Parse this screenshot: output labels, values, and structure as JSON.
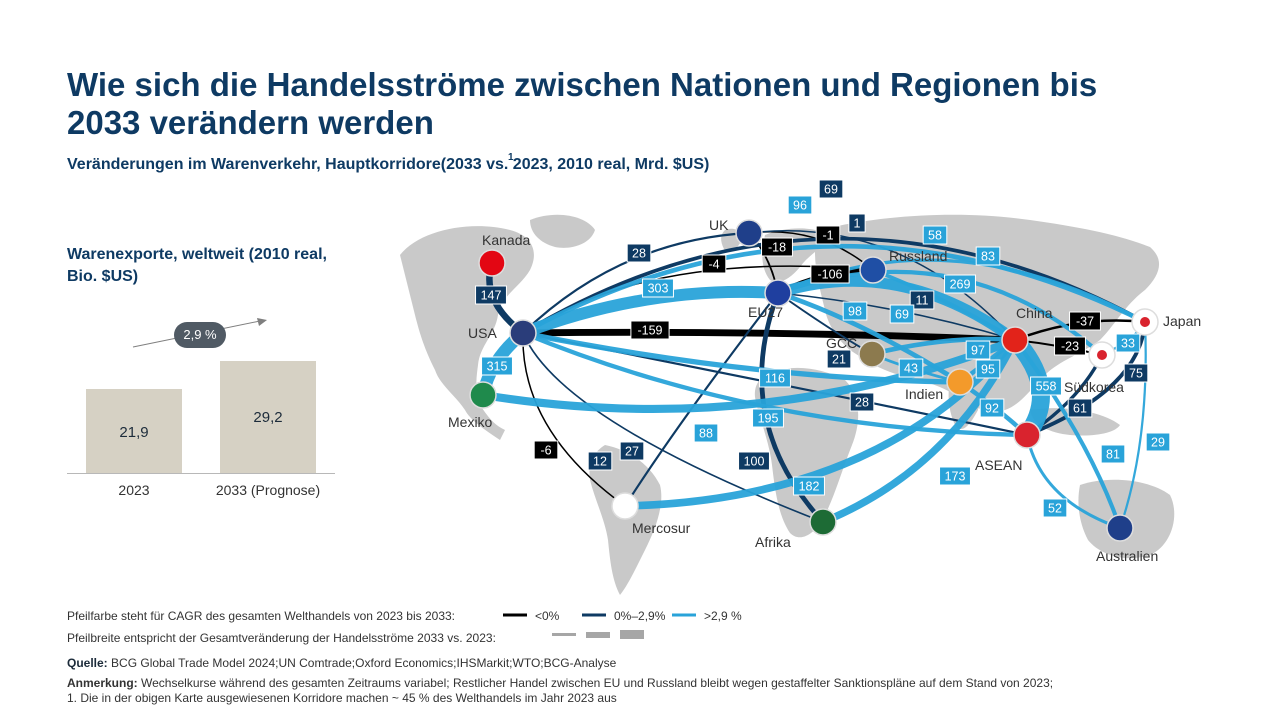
{
  "title": "Wie sich die Handelsströme zwischen Nationen und Regionen bis 2033 verändern werden",
  "subtitle": "Veränderungen im Warenverkehr, Hauptkorridore(2033 vs. 2023, 2010 real, Mrd. $US)",
  "footnote_mark": "1",
  "exports": {
    "title": "Warenexporte, weltweit (2010 real, Bio. $US)",
    "cagr": "2,9 %",
    "bars": [
      {
        "label": "2023",
        "value": "21,9",
        "num": 21.9
      },
      {
        "label": "2033 (Prognose)",
        "value": "29,2",
        "num": 29.2
      }
    ]
  },
  "regions": [
    {
      "name": "Kanada"
    },
    {
      "name": "USA"
    },
    {
      "name": "Mexiko"
    },
    {
      "name": "UK"
    },
    {
      "name": "EU27"
    },
    {
      "name": "Russland"
    },
    {
      "name": "GCC"
    },
    {
      "name": "China"
    },
    {
      "name": "Japan"
    },
    {
      "name": "Südkorea"
    },
    {
      "name": "Indien"
    },
    {
      "name": "ASEAN"
    },
    {
      "name": "Mercosur"
    },
    {
      "name": "Afrika"
    },
    {
      "name": "Australien"
    }
  ],
  "flows": [
    {
      "from": "USA",
      "to": "China",
      "value": "-159",
      "class": "neg"
    },
    {
      "from": "EU27",
      "to": "Russland",
      "value": "-106",
      "class": "neg"
    },
    {
      "from": "UK",
      "to": "EU27",
      "value": "-18",
      "class": "neg"
    },
    {
      "from": "UK",
      "to": "Russland",
      "value": "-1",
      "class": "neg"
    },
    {
      "from": "USA",
      "to": "Russland",
      "value": "-4",
      "class": "neg"
    },
    {
      "from": "China",
      "to": "Japan",
      "value": "-37",
      "class": "neg"
    },
    {
      "from": "China",
      "to": "Südkorea",
      "value": "-23",
      "class": "neg"
    },
    {
      "from": "USA",
      "to": "Mercosur",
      "value": "-6",
      "class": "neg"
    },
    {
      "from": "USA",
      "to": "Japan",
      "value": "69",
      "class": "mid"
    },
    {
      "from": "UK",
      "to": "China",
      "value": "1",
      "class": "mid"
    },
    {
      "from": "USA",
      "to": "UK",
      "value": "28",
      "class": "mid"
    },
    {
      "from": "Kanada",
      "to": "USA",
      "value": "147",
      "class": "mid"
    },
    {
      "from": "EU27",
      "to": "China",
      "value": "11",
      "class": "mid"
    },
    {
      "from": "GCC",
      "to": "EU27",
      "value": "21",
      "class": "mid"
    },
    {
      "from": "USA",
      "to": "ASEAN",
      "value": "28",
      "class": "mid"
    },
    {
      "from": "EU27",
      "to": "Afrika",
      "value": "100",
      "class": "mid"
    },
    {
      "from": "EU27",
      "to": "Mercosur",
      "value": "27",
      "class": "mid"
    },
    {
      "from": "USA",
      "to": "Afrika",
      "value": "12",
      "class": "mid"
    },
    {
      "from": "Japan",
      "to": "ASEAN",
      "value": "75",
      "class": "mid"
    },
    {
      "from": "Südkorea",
      "to": "ASEAN",
      "value": "61",
      "class": "mid"
    },
    {
      "from": "USA",
      "to": "Japan",
      "value": "96",
      "class": "pos"
    },
    {
      "from": "EU27",
      "to": "Japan",
      "value": "58",
      "class": "pos"
    },
    {
      "from": "EU27",
      "to": "Südkorea",
      "value": "83",
      "class": "pos"
    },
    {
      "from": "USA",
      "to": "EU27",
      "value": "303",
      "class": "pos"
    },
    {
      "from": "EU27",
      "to": "China",
      "value": "269",
      "class": "pos"
    },
    {
      "from": "EU27",
      "to": "Indien",
      "value": "98",
      "class": "pos"
    },
    {
      "from": "Russland",
      "to": "China",
      "value": "69",
      "class": "pos"
    },
    {
      "from": "GCC",
      "to": "China",
      "value": "97",
      "class": "pos"
    },
    {
      "from": "GCC",
      "to": "Indien",
      "value": "43",
      "class": "pos"
    },
    {
      "from": "Indien",
      "to": "China",
      "value": "95",
      "class": "pos"
    },
    {
      "from": "USA",
      "to": "Mexiko",
      "value": "315",
      "class": "pos"
    },
    {
      "from": "USA",
      "to": "Indien",
      "value": "116",
      "class": "pos"
    },
    {
      "from": "Mexiko",
      "to": "China",
      "value": "195",
      "class": "pos"
    },
    {
      "from": "USA",
      "to": "ASEAN",
      "value": "88",
      "class": "pos"
    },
    {
      "from": "Indien",
      "to": "ASEAN",
      "value": "92",
      "class": "pos"
    },
    {
      "from": "China",
      "to": "ASEAN",
      "value": "558",
      "class": "pos"
    },
    {
      "from": "Japan",
      "to": "Südkorea",
      "value": "33",
      "class": "pos"
    },
    {
      "from": "Mercosur",
      "to": "China",
      "value": "182",
      "class": "pos"
    },
    {
      "from": "Afrika",
      "to": "China",
      "value": "173",
      "class": "pos"
    },
    {
      "from": "China",
      "to": "Australien",
      "value": "81",
      "class": "pos"
    },
    {
      "from": "ASEAN",
      "to": "Australien",
      "value": "52",
      "class": "pos"
    },
    {
      "from": "Japan",
      "to": "Australien",
      "value": "29",
      "class": "pos"
    }
  ],
  "colors": {
    "neg": "#000000",
    "mid": "#0e3a63",
    "pos": "#29a3d9",
    "bar": "#d6d1c4",
    "title": "#0e3a63"
  },
  "legend": {
    "color_text": "Pfeilfarbe steht für CAGR des gesamten Welthandels von 2023 bis 2033:",
    "width_text": "Pfeilbreite entspricht der Gesamtveränderung der Handelsströme 2033 vs. 2023:",
    "keys": [
      "<0%",
      "0%–2,9%",
      ">2,9 %"
    ]
  },
  "source_label": "Quelle:",
  "source": "BCG Global Trade Model 2024;UN Comtrade;Oxford Economics;IHSMarkit;WTO;BCG-Analyse",
  "note_label": "Anmerkung:",
  "note": "Wechselkurse während des gesamten Zeitraums variabel; Restlicher Handel zwischen EU und Russland bleibt wegen gestaffelter Sanktionspläne auf dem Stand von 2023;",
  "footnote": "1. Die in der obigen Karte ausgewiesenen Korridore machen ~ 45 % des Welthandels im Jahr 2023 aus"
}
